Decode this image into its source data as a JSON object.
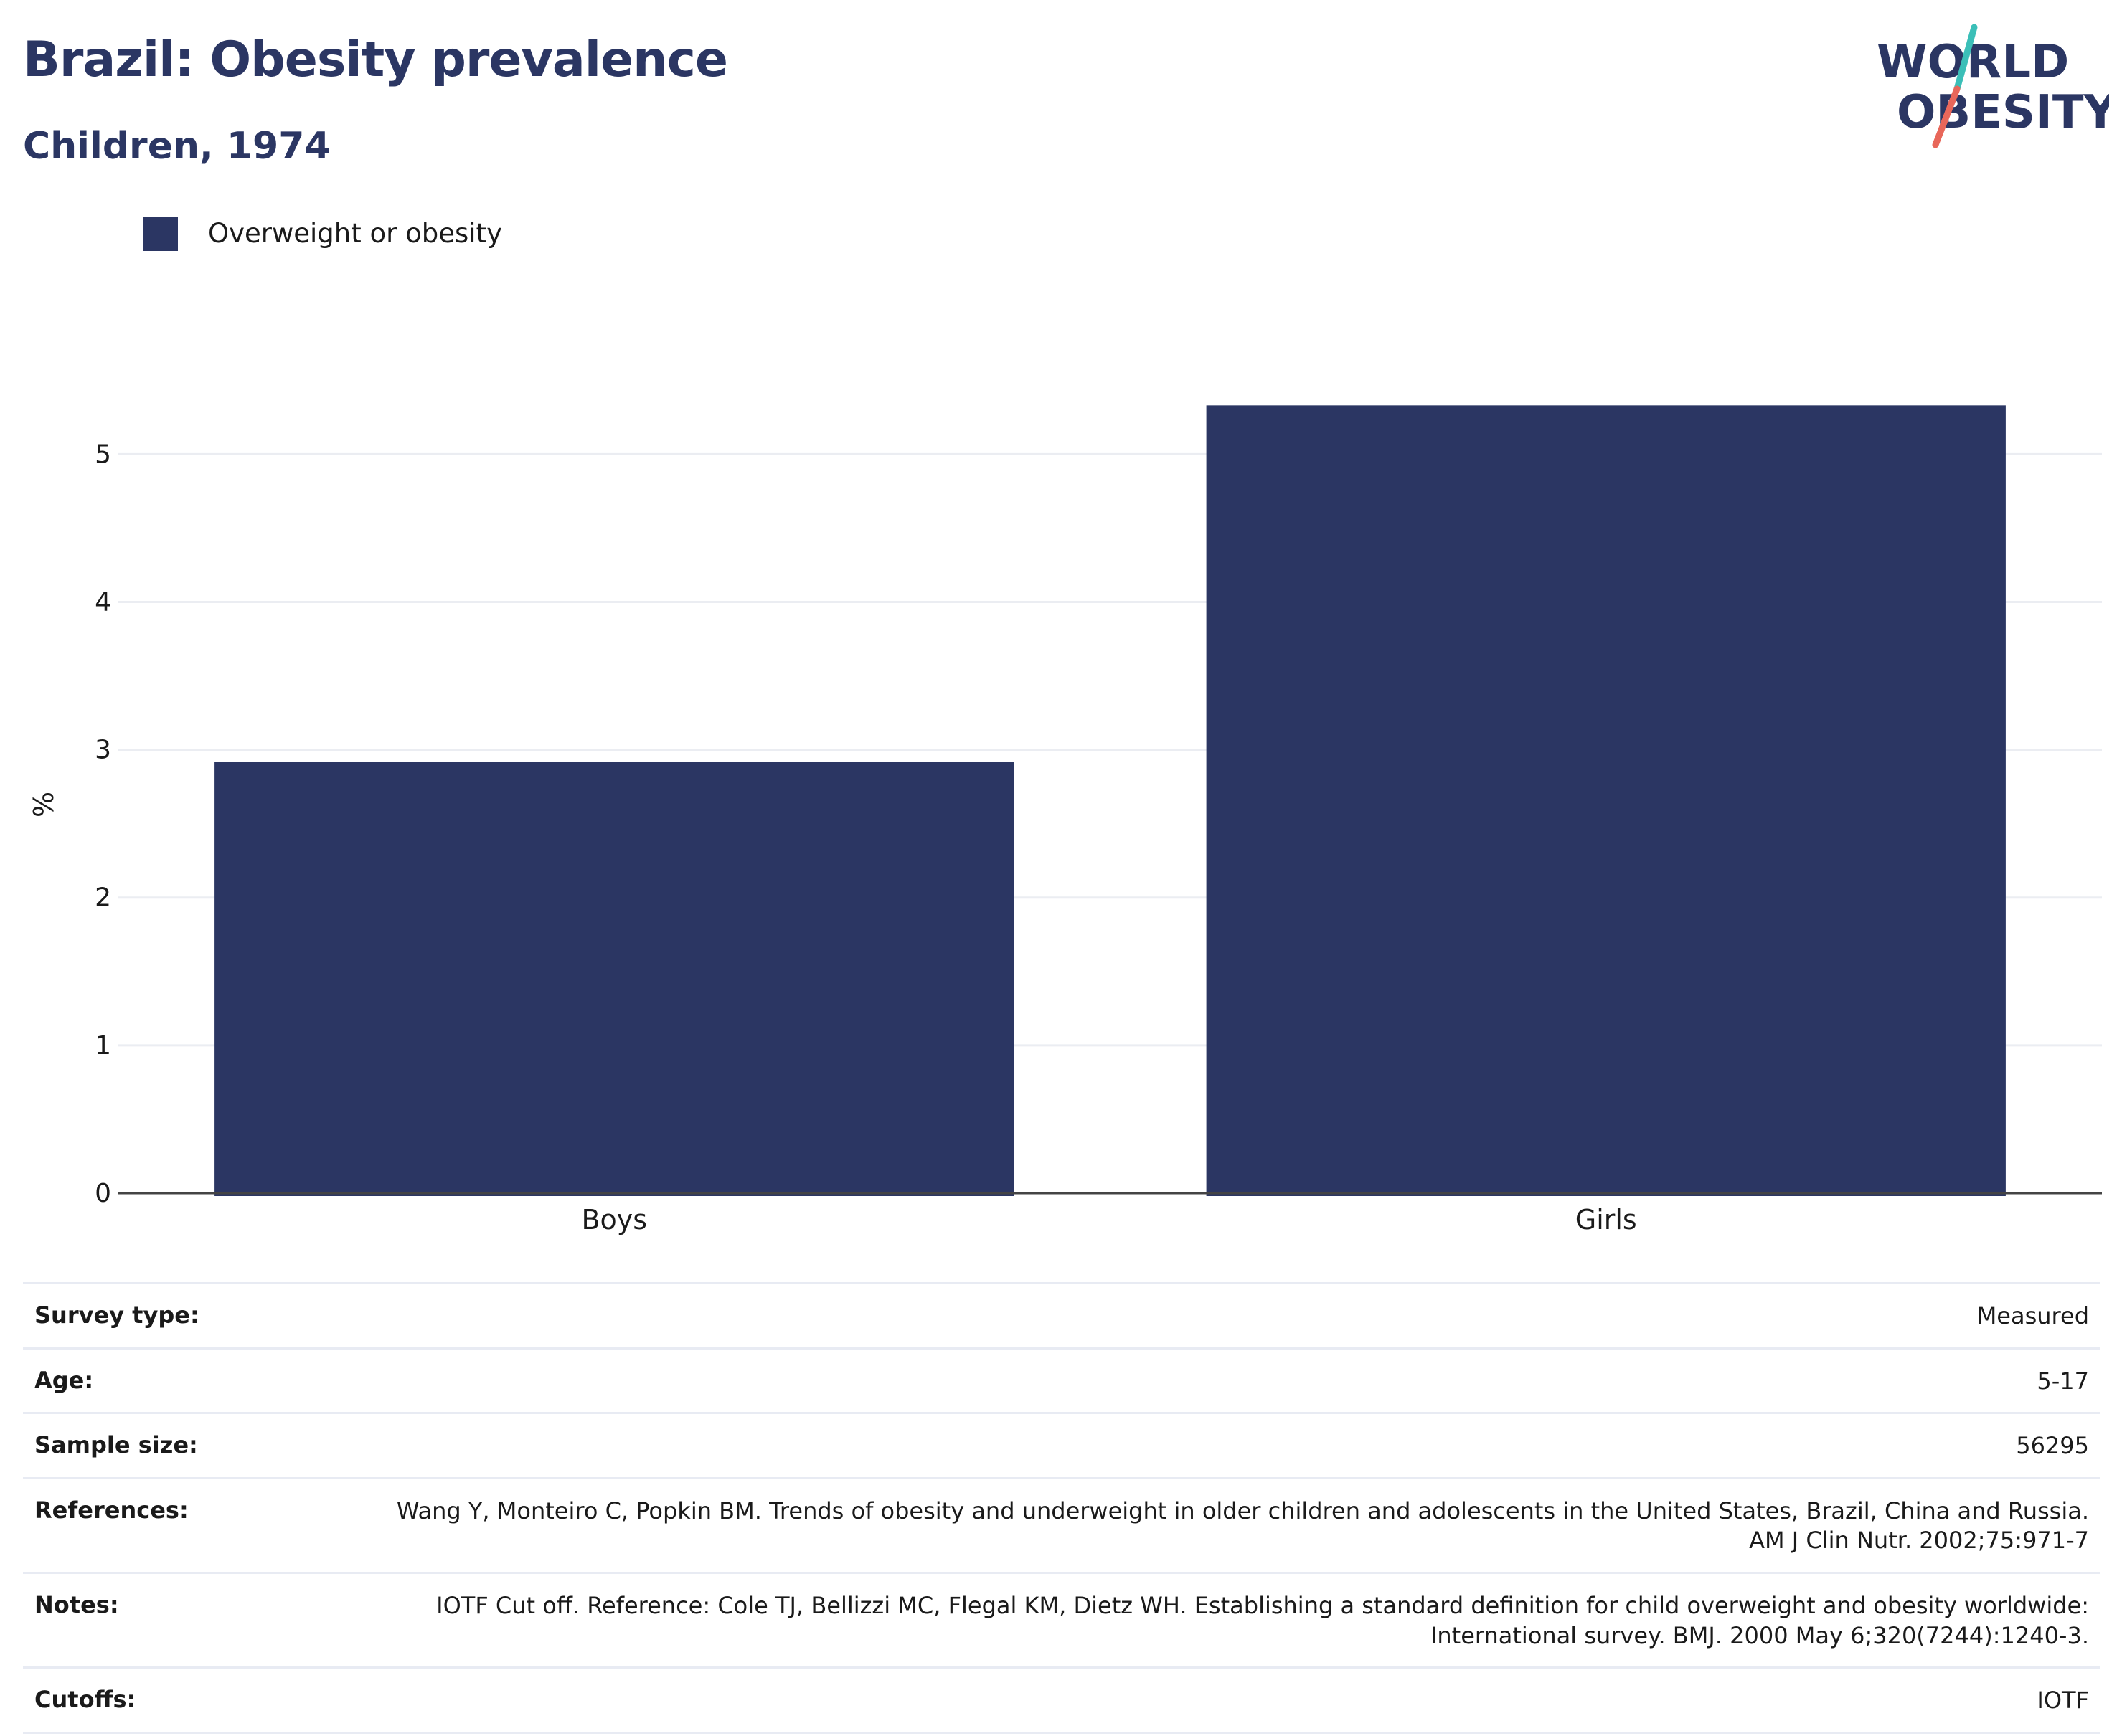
{
  "title": "Brazil: Obesity prevalence",
  "subtitle": "Children, 1974",
  "logo": {
    "line1": "WORLD",
    "line2": "OBESITY"
  },
  "colors": {
    "bar": "#2b3663",
    "title": "#2b3663",
    "logo_teal": "#3bbfb8",
    "logo_coral": "#e8675a"
  },
  "chart_data": {
    "type": "bar",
    "categories": [
      "Boys",
      "Girls"
    ],
    "series": [
      {
        "name": "Overweight or obesity",
        "values": [
          2.92,
          5.33
        ]
      }
    ],
    "ylabel": "%",
    "xlabel": "",
    "ylim": [
      0,
      5.55
    ],
    "yticks": [
      0,
      1,
      2,
      3,
      4,
      5
    ],
    "grid": true,
    "legend_position": "top-left"
  },
  "info_table": [
    {
      "label": "Survey type:",
      "value": "Measured"
    },
    {
      "label": "Age:",
      "value": "5-17"
    },
    {
      "label": "Sample size:",
      "value": "56295"
    },
    {
      "label": "References:",
      "value": "Wang Y, Monteiro C, Popkin BM. Trends of obesity and underweight in older children and adolescents in the United States, Brazil, China and Russia. AM J Clin Nutr. 2002;75:971-7"
    },
    {
      "label": "Notes:",
      "value": "IOTF Cut off. Reference: Cole TJ, Bellizzi MC, Flegal KM, Dietz WH. Establishing a standard definition for child overweight and obesity worldwide: International survey. BMJ. 2000 May 6;320(7244):1240-3."
    },
    {
      "label": "Cutoffs:",
      "value": "IOTF"
    }
  ]
}
